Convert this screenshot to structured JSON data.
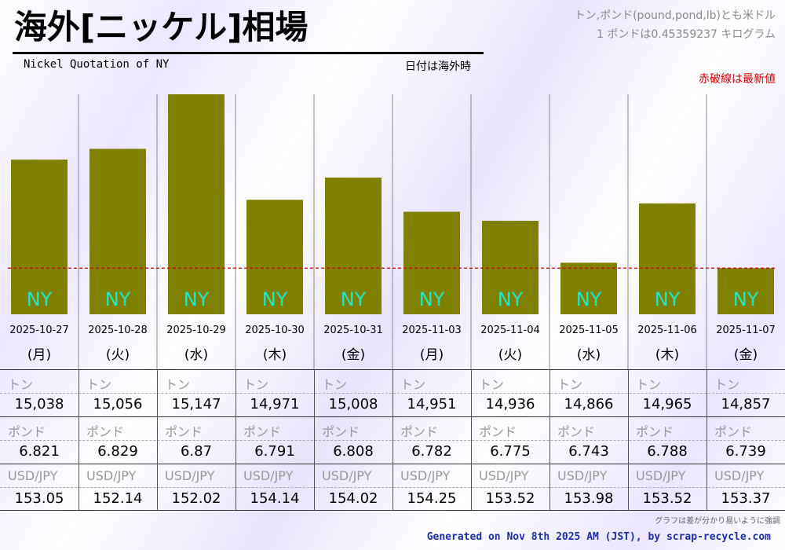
{
  "header": {
    "title": "海外[ニッケル]相場",
    "subtitle": "Nickel Quotation of NY",
    "date_note": "日付は海外時",
    "unit_note_1": "トン,ポンド(pound,pond,lb)とも米ドル",
    "unit_note_2": "1 ポンドは0.45359237 キログラム",
    "latest_note": "赤破線は最新値"
  },
  "chart_data": {
    "type": "bar",
    "title": "海外[ニッケル]相場",
    "subtitle": "Nickel Quotation of NY",
    "categories": [
      "2025-10-27",
      "2025-10-28",
      "2025-10-29",
      "2025-10-30",
      "2025-10-31",
      "2025-11-03",
      "2025-11-04",
      "2025-11-05",
      "2025-11-06",
      "2025-11-07"
    ],
    "weekdays": [
      "(月)",
      "(火)",
      "(水)",
      "(木)",
      "(金)",
      "(月)",
      "(火)",
      "(水)",
      "(木)",
      "(金)"
    ],
    "values": [
      15038,
      15056,
      15147,
      14971,
      15008,
      14951,
      14936,
      14866,
      14965,
      14857
    ],
    "bar_label": "NY",
    "ylim": [
      14780,
      15147
    ],
    "latest_value": 14857,
    "bar_color": "#808000",
    "label_color": "#1fe8c8",
    "latest_line_color": "#d10000"
  },
  "table": {
    "ton_label": "トン",
    "pound_label": "ポンド",
    "fx_label": "USD/JPY",
    "ton": [
      "15,038",
      "15,056",
      "15,147",
      "14,971",
      "15,008",
      "14,951",
      "14,936",
      "14,866",
      "14,965",
      "14,857"
    ],
    "pound": [
      "6.821",
      "6.829",
      "6.87",
      "6.791",
      "6.808",
      "6.782",
      "6.775",
      "6.743",
      "6.788",
      "6.739"
    ],
    "fx": [
      "153.05",
      "152.14",
      "152.02",
      "154.14",
      "154.02",
      "154.25",
      "153.52",
      "153.98",
      "153.52",
      "153.37"
    ]
  },
  "footnote": "グラフは差が分かり易いように強調",
  "footer": "Generated on Nov 8th 2025 AM (JST), by scrap-recycle.com"
}
